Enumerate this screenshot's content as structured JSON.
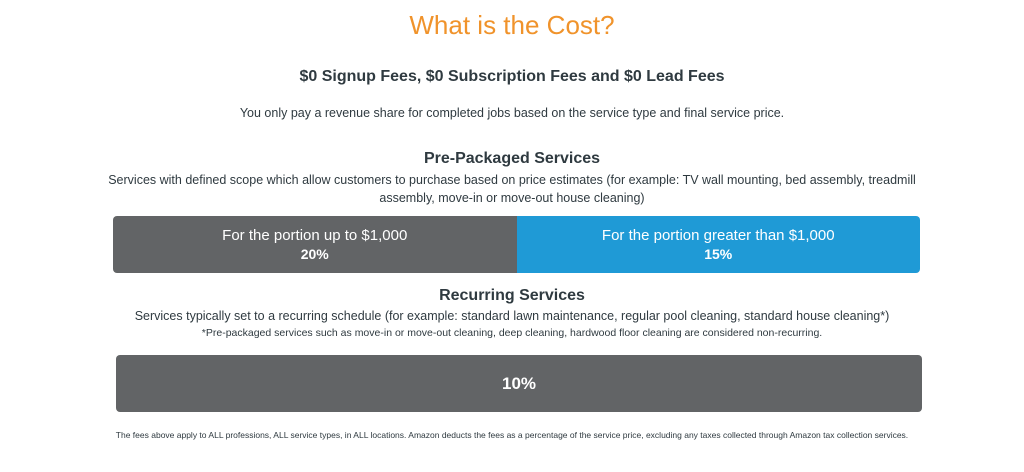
{
  "header": {
    "title": "What is the Cost?",
    "subtitle": "$0 Signup Fees, $0 Subscription Fees and $0 Lead Fees",
    "intro": "You only pay a revenue share for completed jobs based on the service type and final service price."
  },
  "pre_packaged": {
    "heading": "Pre-Packaged Services",
    "description": "Services with defined scope which allow customers to purchase based on price estimates (for example: TV wall mounting, bed assembly, treadmill assembly, move-in or move-out house cleaning)",
    "tiers": [
      {
        "label": "For the portion up to $1,000",
        "rate": "20%",
        "color": "#626466"
      },
      {
        "label": "For the portion greater than $1,000",
        "rate": "15%",
        "color": "#1f9ad6"
      }
    ]
  },
  "recurring": {
    "heading": "Recurring Services",
    "description": "Services typically set to a recurring schedule (for example: standard lawn maintenance, regular pool cleaning, standard house cleaning*)",
    "note": "*Pre-packaged services such as move-in or move-out cleaning, deep cleaning, hardwood floor cleaning are considered non-recurring.",
    "rate": "10%",
    "color": "#626466"
  },
  "footnote": "The fees above apply to ALL professions, ALL service types, in ALL locations. Amazon deducts the fees as a percentage of the service price, excluding any taxes collected through Amazon tax collection services.",
  "colors": {
    "accent": "#f0932b",
    "text": "#2f3a40"
  }
}
